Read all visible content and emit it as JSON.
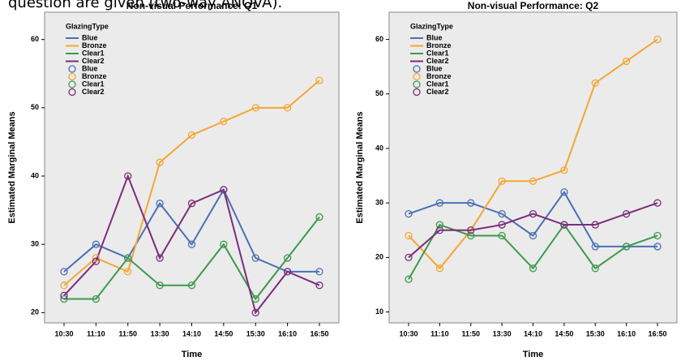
{
  "caption": "question are given (two-way ANOVA).",
  "chart_data": [
    {
      "type": "line",
      "title": "Non-visual Performance: Q1",
      "x_label": "Time",
      "y_label": "Estimated Marginal Means",
      "categories": [
        "10:30",
        "11:10",
        "11:50",
        "13:30",
        "14:10",
        "14:50",
        "15:30",
        "16:10",
        "16:50"
      ],
      "ylim": [
        18.5,
        64
      ],
      "yticks": [
        20,
        30,
        40,
        50,
        60
      ],
      "legend": "upper left",
      "legend_title": "GlazingType",
      "markers": true,
      "series": [
        {
          "name": "Blue",
          "color": "#4a6fb5",
          "values": [
            26,
            30,
            28,
            36,
            30,
            38,
            28,
            26,
            26
          ]
        },
        {
          "name": "Bronze",
          "color": "#f5a632",
          "values": [
            24,
            28,
            26,
            42,
            46,
            48,
            50,
            50,
            54
          ]
        },
        {
          "name": "Clear1",
          "color": "#3c9a4c",
          "values": [
            22,
            22,
            28,
            24,
            24,
            30,
            22,
            28,
            34
          ]
        },
        {
          "name": "Clear2",
          "color": "#7b2c7b",
          "values": [
            22.5,
            27.5,
            40,
            28,
            36,
            38,
            20,
            26,
            24
          ]
        }
      ]
    },
    {
      "type": "line",
      "title": "Non-visual Performance: Q2",
      "x_label": "Time",
      "y_label": "Estimated Marginal Means",
      "categories": [
        "10:30",
        "11:10",
        "11:50",
        "13:30",
        "14:10",
        "14:50",
        "15:30",
        "16:10",
        "16:50"
      ],
      "ylim": [
        8,
        65
      ],
      "yticks": [
        10,
        20,
        30,
        40,
        50,
        60
      ],
      "legend": "upper left",
      "legend_title": "GlazingType",
      "markers": true,
      "series": [
        {
          "name": "Blue",
          "color": "#4a6fb5",
          "values": [
            28,
            30,
            30,
            28,
            24,
            32,
            22,
            22,
            22
          ]
        },
        {
          "name": "Bronze",
          "color": "#f5a632",
          "values": [
            24,
            18,
            25,
            34,
            34,
            36,
            52,
            56,
            60
          ]
        },
        {
          "name": "Clear1",
          "color": "#3c9a4c",
          "values": [
            16,
            26,
            24,
            24,
            18,
            26,
            18,
            22,
            24
          ]
        },
        {
          "name": "Clear2",
          "color": "#7b2c7b",
          "values": [
            20,
            25,
            25,
            26,
            28,
            26,
            26,
            28,
            30
          ]
        }
      ]
    }
  ]
}
